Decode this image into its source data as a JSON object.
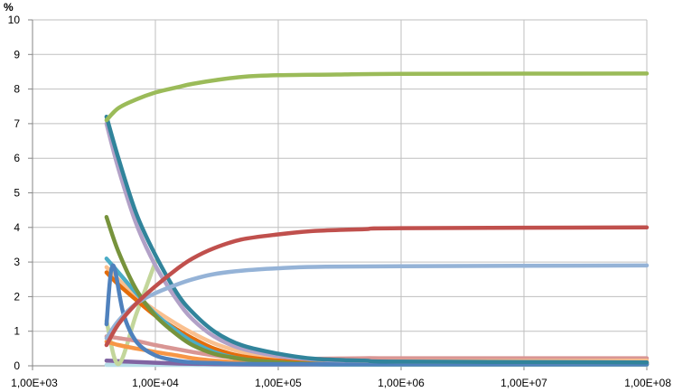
{
  "chart_data": {
    "type": "line",
    "title": "",
    "ylabel": "%",
    "xlabel": "",
    "xscale": "log",
    "xlim": [
      1000,
      100000000
    ],
    "ylim": [
      0,
      10
    ],
    "grid": true,
    "legend": "none",
    "x_tick_labels": [
      "1,00E+03",
      "1,00E+04",
      "1,00E+05",
      "1,00E+06",
      "1,00E+07",
      "1,00E+08"
    ],
    "y_tick_labels": [
      "0",
      "1",
      "2",
      "3",
      "4",
      "5",
      "6",
      "7",
      "8",
      "9",
      "10"
    ],
    "series": [
      {
        "color": "#9bbb59",
        "x": [
          4000,
          5000,
          7000,
          10000,
          15000,
          20000,
          30000,
          50000,
          100000,
          300000,
          1000000,
          100000000
        ],
        "y": [
          7.1,
          7.45,
          7.7,
          7.9,
          8.05,
          8.15,
          8.25,
          8.35,
          8.4,
          8.42,
          8.44,
          8.45
        ]
      },
      {
        "color": "#c0504d",
        "x": [
          4000,
          5000,
          7000,
          10000,
          15000,
          20000,
          30000,
          50000,
          100000,
          200000,
          500000,
          1000000,
          100000000
        ],
        "y": [
          0.6,
          1.2,
          1.8,
          2.3,
          2.8,
          3.1,
          3.4,
          3.65,
          3.8,
          3.9,
          3.95,
          3.98,
          4.0
        ]
      },
      {
        "color": "#95b3d7",
        "x": [
          4000,
          5000,
          7000,
          10000,
          15000,
          20000,
          30000,
          50000,
          100000,
          200000,
          1000000,
          100000000
        ],
        "y": [
          0.8,
          1.3,
          1.8,
          2.1,
          2.35,
          2.5,
          2.65,
          2.75,
          2.82,
          2.86,
          2.88,
          2.9
        ]
      },
      {
        "color": "#31849b",
        "x": [
          4000,
          5000,
          7000,
          10000,
          15000,
          20000,
          30000,
          50000,
          100000,
          200000,
          500000,
          1000000,
          100000000
        ],
        "y": [
          7.2,
          6.0,
          4.4,
          3.2,
          2.1,
          1.55,
          1.0,
          0.6,
          0.35,
          0.2,
          0.15,
          0.12,
          0.1
        ]
      },
      {
        "color": "#b2a1c7",
        "x": [
          4000,
          5000,
          7000,
          10000,
          15000,
          20000,
          30000,
          50000,
          100000,
          200000,
          500000,
          1000000,
          100000000
        ],
        "y": [
          7.0,
          5.7,
          4.1,
          2.9,
          1.9,
          1.35,
          0.85,
          0.5,
          0.28,
          0.18,
          0.14,
          0.12,
          0.1
        ]
      },
      {
        "color": "#4f81bd",
        "x": [
          4000,
          4500,
          5500,
          7000,
          10000,
          15000,
          20000,
          30000,
          100000,
          100000000
        ],
        "y": [
          1.2,
          2.9,
          1.5,
          0.7,
          0.3,
          0.15,
          0.1,
          0.08,
          0.05,
          0.05
        ]
      },
      {
        "color": "#77933c",
        "x": [
          4000,
          5000,
          7000,
          10000,
          15000,
          20000,
          30000,
          50000,
          100000,
          200000,
          1000000,
          100000000
        ],
        "y": [
          4.3,
          3.3,
          2.2,
          1.45,
          0.9,
          0.6,
          0.35,
          0.2,
          0.1,
          0.06,
          0.05,
          0.05
        ]
      },
      {
        "color": "#4bacc6",
        "x": [
          4000,
          5000,
          7000,
          10000,
          15000,
          20000,
          30000,
          50000,
          100000,
          200000,
          500000,
          100000000
        ],
        "y": [
          3.1,
          2.7,
          2.1,
          1.5,
          1.0,
          0.7,
          0.4,
          0.2,
          0.1,
          0.05,
          0.04,
          0.04
        ]
      },
      {
        "color": "#e46c0a",
        "x": [
          4000,
          5000,
          7000,
          10000,
          15000,
          20000,
          30000,
          50000,
          100000,
          200000,
          500000,
          100000000
        ],
        "y": [
          2.7,
          2.35,
          1.9,
          1.45,
          1.05,
          0.8,
          0.5,
          0.28,
          0.15,
          0.1,
          0.08,
          0.08
        ]
      },
      {
        "color": "#fac08f",
        "x": [
          4000,
          5000,
          7000,
          10000,
          15000,
          20000,
          30000,
          50000,
          100000,
          200000,
          500000,
          1000000,
          100000000
        ],
        "y": [
          2.85,
          2.5,
          2.0,
          1.6,
          1.2,
          0.95,
          0.65,
          0.4,
          0.2,
          0.1,
          0.12,
          0.13,
          0.15
        ]
      },
      {
        "color": "#d99694",
        "x": [
          4000,
          5000,
          7000,
          10000,
          15000,
          20000,
          30000,
          50000,
          100000,
          200000,
          500000,
          1000000,
          100000000
        ],
        "y": [
          0.85,
          0.8,
          0.72,
          0.6,
          0.48,
          0.4,
          0.3,
          0.22,
          0.18,
          0.2,
          0.22,
          0.22,
          0.22
        ]
      },
      {
        "color": "#f79646",
        "x": [
          4000,
          5000,
          7000,
          10000,
          15000,
          20000,
          30000,
          50000,
          100000,
          200000,
          100000000
        ],
        "y": [
          0.7,
          0.6,
          0.5,
          0.4,
          0.3,
          0.22,
          0.15,
          0.1,
          0.07,
          0.05,
          0.05
        ]
      },
      {
        "color": "#c3d69b",
        "x": [
          4000,
          5000,
          7000,
          10000
        ],
        "y": [
          1.3,
          0.05,
          1.5,
          3.0
        ]
      },
      {
        "color": "#8064a2",
        "x": [
          4000,
          6000,
          10000,
          20000,
          100000,
          100000000
        ],
        "y": [
          0.15,
          0.12,
          0.09,
          0.06,
          0.04,
          0.04
        ]
      },
      {
        "color": "#b7dee8",
        "x": [
          4000,
          10000,
          100000,
          100000000
        ],
        "y": [
          0.02,
          0.02,
          0.02,
          0.02
        ]
      }
    ]
  }
}
